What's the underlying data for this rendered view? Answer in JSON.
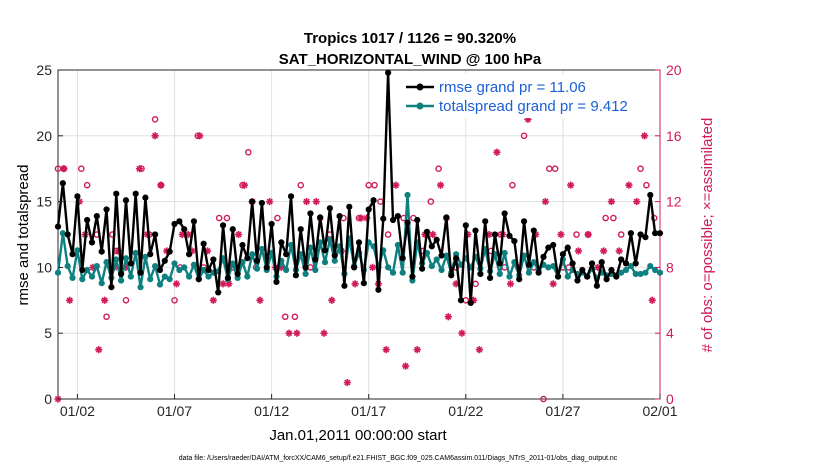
{
  "chart_data": {
    "type": "line",
    "title_line1": "Tropics 1017 / 1126 = 90.320%",
    "title_line2": "SAT_HORIZONTAL_WIND @ 100 hPa",
    "xlabel": "Jan.01,2011 00:00:00 start",
    "ylabel_left": "rmse and totalspread",
    "ylabel_right": "# of obs: o=possible; ×=assimilated",
    "xlim": [
      0,
      31
    ],
    "ylim_left": [
      0,
      25
    ],
    "ylim_right": [
      0,
      20
    ],
    "x_tick_labels": [
      {
        "x": 1,
        "label": "01/02"
      },
      {
        "x": 6,
        "label": "01/07"
      },
      {
        "x": 11,
        "label": "01/12"
      },
      {
        "x": 16,
        "label": "01/17"
      },
      {
        "x": 21,
        "label": "01/22"
      },
      {
        "x": 26,
        "label": "01/27"
      },
      {
        "x": 31,
        "label": "02/01"
      }
    ],
    "y_left_ticks": [
      0,
      5,
      10,
      15,
      20,
      25
    ],
    "y_right_ticks": [
      0,
      4,
      8,
      12,
      16,
      20
    ],
    "legend": [
      {
        "label": "rmse grand pr = 11.06",
        "color": "#000000"
      },
      {
        "label": "totalspread grand pr = 9.412",
        "color": "#0e8080"
      }
    ],
    "rmse": {
      "x": [
        0.0,
        0.25,
        0.5,
        0.75,
        1.0,
        1.25,
        1.5,
        1.75,
        2.0,
        2.25,
        2.5,
        2.75,
        3.0,
        3.25,
        3.5,
        3.75,
        4.0,
        4.25,
        4.5,
        4.75,
        5.0,
        5.25,
        5.5,
        5.75,
        6.0,
        6.25,
        6.5,
        6.75,
        7.0,
        7.25,
        7.5,
        7.75,
        8.0,
        8.25,
        8.5,
        8.75,
        9.0,
        9.25,
        9.5,
        9.75,
        10.0,
        10.25,
        10.5,
        10.75,
        11.0,
        11.25,
        11.5,
        11.75,
        12.0,
        12.25,
        12.5,
        12.75,
        13.0,
        13.25,
        13.5,
        13.75,
        14.0,
        14.25,
        14.5,
        14.75,
        15.0,
        15.25,
        15.5,
        15.75,
        16.0,
        16.25,
        16.5,
        16.75,
        17.0,
        17.25,
        17.5,
        17.75,
        18.0,
        18.25,
        18.5,
        18.75,
        19.0,
        19.25,
        19.5,
        19.75,
        20.0,
        20.25,
        20.5,
        20.75,
        21.0,
        21.25,
        21.5,
        21.75,
        22.0,
        22.25,
        22.5,
        22.75,
        23.0,
        23.25,
        23.5,
        23.75,
        24.0,
        24.25,
        24.5,
        24.75,
        25.0,
        25.25,
        25.5,
        25.75,
        26.0,
        26.25,
        26.5,
        26.75,
        27.0,
        27.25,
        27.5,
        27.75,
        28.0,
        28.25,
        28.5,
        28.75,
        29.0,
        29.25,
        29.5,
        29.75,
        30.0,
        30.25,
        30.5,
        30.75,
        31.0
      ],
      "y": [
        13.1,
        16.4,
        12.5,
        11.0,
        15.4,
        9.8,
        13.6,
        11.9,
        13.9,
        11.2,
        14.4,
        8.5,
        15.6,
        9.5,
        15.1,
        10.3,
        15.6,
        9.6,
        15.3,
        11.0,
        12.5,
        9.8,
        10.5,
        11.2,
        13.3,
        13.5,
        12.9,
        11.0,
        13.5,
        9.1,
        11.8,
        9.8,
        10.6,
        8.1,
        13.2,
        9.2,
        12.9,
        9.5,
        11.7,
        10.7,
        15.0,
        10.5,
        14.9,
        10.0,
        13.3,
        8.9,
        11.9,
        11.0,
        15.4,
        9.4,
        12.9,
        10.0,
        14.1,
        10.6,
        13.8,
        11.3,
        14.5,
        10.9,
        13.9,
        8.6,
        14.6,
        10.0,
        11.9,
        8.8,
        14.4,
        15.1,
        8.3,
        13.7,
        24.8,
        13.6,
        13.9,
        10.7,
        13.4,
        9.3,
        13.6,
        9.9,
        12.7,
        11.6,
        12.1,
        10.9,
        13.8,
        9.4,
        10.7,
        7.5,
        13.2,
        7.3,
        12.8,
        9.5,
        13.5,
        9.2,
        12.5,
        10.3,
        14.1,
        12.4,
        12.0,
        9.1,
        13.5,
        10.2,
        12.8,
        9.6,
        10.8,
        11.5,
        11.7,
        9.3,
        11.0,
        11.5,
        10.3,
        9.0,
        9.8,
        9.3,
        10.3,
        8.6,
        10.4,
        9.1,
        9.8,
        9.3,
        10.6,
        10.3,
        12.6,
        10.3,
        12.5,
        12.3,
        15.5,
        12.6,
        12.6
      ]
    },
    "totalspread": {
      "x": [
        0.0,
        0.25,
        0.5,
        0.75,
        1.0,
        1.25,
        1.5,
        1.75,
        2.0,
        2.25,
        2.5,
        2.75,
        3.0,
        3.25,
        3.5,
        3.75,
        4.0,
        4.25,
        4.5,
        4.75,
        5.0,
        5.25,
        5.5,
        5.75,
        6.0,
        6.25,
        6.5,
        6.75,
        7.0,
        7.25,
        7.5,
        7.75,
        8.0,
        8.25,
        8.5,
        8.75,
        9.0,
        9.25,
        9.5,
        9.75,
        10.0,
        10.25,
        10.5,
        10.75,
        11.0,
        11.25,
        11.5,
        11.75,
        12.0,
        12.25,
        12.5,
        12.75,
        13.0,
        13.25,
        13.5,
        13.75,
        14.0,
        14.25,
        14.5,
        14.75,
        15.0,
        15.25,
        15.5,
        15.75,
        16.0,
        16.25,
        16.5,
        16.75,
        17.0,
        17.25,
        17.5,
        17.75,
        18.0,
        18.25,
        18.5,
        18.75,
        19.0,
        19.25,
        19.5,
        19.75,
        20.0,
        20.25,
        20.5,
        20.75,
        21.0,
        21.25,
        21.5,
        21.75,
        22.0,
        22.25,
        22.5,
        22.75,
        23.0,
        23.25,
        23.5,
        23.75,
        24.0,
        24.25,
        24.5,
        24.75,
        25.0,
        25.25,
        25.5,
        25.75,
        26.0,
        26.25,
        26.5,
        26.75,
        27.0,
        27.25,
        27.5,
        27.75,
        28.0,
        28.25,
        28.5,
        28.75,
        29.0,
        29.25,
        29.5,
        29.75,
        30.0,
        30.25,
        30.5,
        30.75,
        31.0
      ],
      "y": [
        9.6,
        12.6,
        10.1,
        9.2,
        11.3,
        9.1,
        9.8,
        9.3,
        10.1,
        8.8,
        10.4,
        9.2,
        10.6,
        9.0,
        10.7,
        9.3,
        11.1,
        8.5,
        10.8,
        9.1,
        10.1,
        8.7,
        9.3,
        9.1,
        10.3,
        9.8,
        10.0,
        9.3,
        10.2,
        9.1,
        9.8,
        9.3,
        9.6,
        9.7,
        10.7,
        9.1,
        10.3,
        9.2,
        10.4,
        9.3,
        11.0,
        9.9,
        11.4,
        9.8,
        11.1,
        9.3,
        10.5,
        9.8,
        11.7,
        9.8,
        11.0,
        9.5,
        11.5,
        9.8,
        11.9,
        10.4,
        12.1,
        10.5,
        11.6,
        9.5,
        12.2,
        10.1,
        11.1,
        9.8,
        11.9,
        11.6,
        10.0,
        11.3,
        10.0,
        9.6,
        11.7,
        9.6,
        15.5,
        9.0,
        11.9,
        10.3,
        11.1,
        10.1,
        10.6,
        9.8,
        10.9,
        9.6,
        11.0,
        10.2,
        10.7,
        10.0,
        10.8,
        9.9,
        11.4,
        9.7,
        11.0,
        9.5,
        11.1,
        9.3,
        10.4,
        9.4,
        10.9,
        9.6,
        10.4,
        9.8,
        10.2,
        10.0,
        10.1,
        9.3,
        10.6,
        9.3,
        9.8,
        9.5,
        9.6,
        9.3,
        9.9,
        9.2,
        9.6,
        9.4,
        9.5,
        9.4,
        9.6,
        9.8,
        10.1,
        9.5,
        9.5,
        9.6,
        10.1,
        9.8,
        9.6
      ]
    },
    "obs_possible": [
      [
        0.0,
        14
      ],
      [
        0.3,
        14
      ],
      [
        1.2,
        14
      ],
      [
        1.5,
        13
      ],
      [
        2.0,
        10
      ],
      [
        2.5,
        5
      ],
      [
        2.8,
        10
      ],
      [
        3.0,
        9
      ],
      [
        3.5,
        6
      ],
      [
        4.3,
        14
      ],
      [
        4.7,
        10
      ],
      [
        5.0,
        17
      ],
      [
        5.3,
        13
      ],
      [
        6.0,
        6
      ],
      [
        6.3,
        8
      ],
      [
        7.2,
        16
      ],
      [
        7.5,
        8
      ],
      [
        8.3,
        11
      ],
      [
        8.7,
        11
      ],
      [
        9.0,
        8
      ],
      [
        9.5,
        13
      ],
      [
        9.8,
        15
      ],
      [
        10.2,
        8
      ],
      [
        11.3,
        11
      ],
      [
        11.7,
        5
      ],
      [
        12.2,
        5
      ],
      [
        12.5,
        13
      ],
      [
        13.0,
        8
      ],
      [
        13.5,
        11
      ],
      [
        14.0,
        10
      ],
      [
        14.7,
        11
      ],
      [
        15.5,
        11
      ],
      [
        16.0,
        13
      ],
      [
        16.3,
        13
      ],
      [
        16.6,
        12
      ],
      [
        17.0,
        10
      ],
      [
        17.8,
        11
      ],
      [
        18.3,
        11
      ],
      [
        18.8,
        9
      ],
      [
        19.2,
        12
      ],
      [
        19.6,
        14
      ],
      [
        20.0,
        11
      ],
      [
        20.5,
        8
      ],
      [
        21.0,
        6
      ],
      [
        21.3,
        6
      ],
      [
        21.5,
        7
      ],
      [
        22.3,
        9
      ],
      [
        22.8,
        10
      ],
      [
        23.0,
        8
      ],
      [
        23.4,
        13
      ],
      [
        24.0,
        16
      ],
      [
        24.5,
        8
      ],
      [
        25.0,
        0
      ],
      [
        25.3,
        14
      ],
      [
        25.6,
        14
      ],
      [
        26.0,
        8
      ],
      [
        26.3,
        8
      ],
      [
        26.7,
        10
      ],
      [
        27.3,
        10
      ],
      [
        28.2,
        11
      ],
      [
        28.6,
        11
      ],
      [
        29.0,
        10
      ],
      [
        30.0,
        14
      ],
      [
        30.3,
        13
      ],
      [
        30.7,
        11
      ]
    ],
    "obs_assimilated": [
      [
        0.0,
        0
      ],
      [
        0.3,
        14
      ],
      [
        0.6,
        6
      ],
      [
        1.1,
        12
      ],
      [
        1.4,
        10
      ],
      [
        1.8,
        8
      ],
      [
        2.1,
        3
      ],
      [
        2.4,
        6
      ],
      [
        2.9,
        8
      ],
      [
        3.1,
        9
      ],
      [
        3.5,
        8
      ],
      [
        4.2,
        14
      ],
      [
        4.6,
        10
      ],
      [
        5.0,
        16
      ],
      [
        5.3,
        13
      ],
      [
        5.6,
        9
      ],
      [
        6.1,
        7
      ],
      [
        6.4,
        10
      ],
      [
        6.7,
        10
      ],
      [
        6.9,
        9
      ],
      [
        7.3,
        16
      ],
      [
        7.7,
        9
      ],
      [
        8.0,
        6
      ],
      [
        8.5,
        7
      ],
      [
        8.8,
        7
      ],
      [
        9.3,
        10
      ],
      [
        9.6,
        13
      ],
      [
        10.0,
        12
      ],
      [
        10.4,
        6
      ],
      [
        10.9,
        12
      ],
      [
        11.2,
        8
      ],
      [
        11.5,
        8
      ],
      [
        11.9,
        4
      ],
      [
        12.3,
        4
      ],
      [
        12.8,
        12
      ],
      [
        13.3,
        12
      ],
      [
        13.7,
        4
      ],
      [
        14.1,
        6
      ],
      [
        14.6,
        9
      ],
      [
        14.9,
        1
      ],
      [
        15.3,
        7
      ],
      [
        15.6,
        11
      ],
      [
        15.9,
        11
      ],
      [
        16.2,
        8
      ],
      [
        16.5,
        7
      ],
      [
        16.9,
        3
      ],
      [
        17.4,
        13
      ],
      [
        17.9,
        2
      ],
      [
        18.5,
        3
      ],
      [
        18.9,
        10
      ],
      [
        19.3,
        10
      ],
      [
        19.7,
        13
      ],
      [
        20.1,
        5
      ],
      [
        20.5,
        7
      ],
      [
        20.8,
        4
      ],
      [
        21.1,
        10
      ],
      [
        21.4,
        6
      ],
      [
        21.7,
        3
      ],
      [
        22.2,
        10
      ],
      [
        22.6,
        15
      ],
      [
        22.9,
        10
      ],
      [
        23.3,
        7
      ],
      [
        23.7,
        8
      ],
      [
        24.2,
        17
      ],
      [
        24.6,
        10
      ],
      [
        25.1,
        12
      ],
      [
        25.5,
        7
      ],
      [
        25.9,
        10
      ],
      [
        26.4,
        13
      ],
      [
        26.8,
        9
      ],
      [
        27.3,
        10
      ],
      [
        27.8,
        8
      ],
      [
        28.1,
        9
      ],
      [
        28.5,
        12
      ],
      [
        28.9,
        9
      ],
      [
        29.4,
        13
      ],
      [
        29.8,
        12
      ],
      [
        30.2,
        16
      ],
      [
        30.6,
        6
      ]
    ]
  },
  "footnote": "data file: /Users/raeder/DAI/ATM_forcXX/CAM6_setup/f.e21.FHIST_BGC.f09_025.CAM6assim.011/Diags_NTrS_2011-01/obs_diag_output.nc",
  "colors": {
    "rmse": "#000000",
    "totalspread": "#0e8080",
    "obs": "#d11b5b",
    "grid": "#e0e0e0",
    "legend_text": "#1a5fd6"
  }
}
